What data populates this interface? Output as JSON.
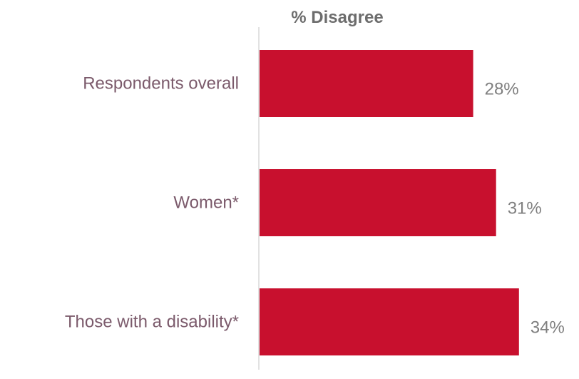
{
  "chart_data": {
    "type": "bar",
    "orientation": "horizontal",
    "title": "% Disagree",
    "categories": [
      "Respondents overall",
      "Women*",
      "Those with a disability*"
    ],
    "values": [
      28,
      31,
      34
    ],
    "data_labels": [
      "28%",
      "31%",
      "34%"
    ],
    "unit": "%",
    "xlim": [
      0,
      40
    ],
    "grid": false,
    "legend": "none"
  },
  "colors": {
    "bar": "#C8102E",
    "category_label": "#7B5A6B",
    "value_label": "#7F7F7F",
    "header": "#6D6D6D",
    "axis": "#D9D9D9"
  }
}
